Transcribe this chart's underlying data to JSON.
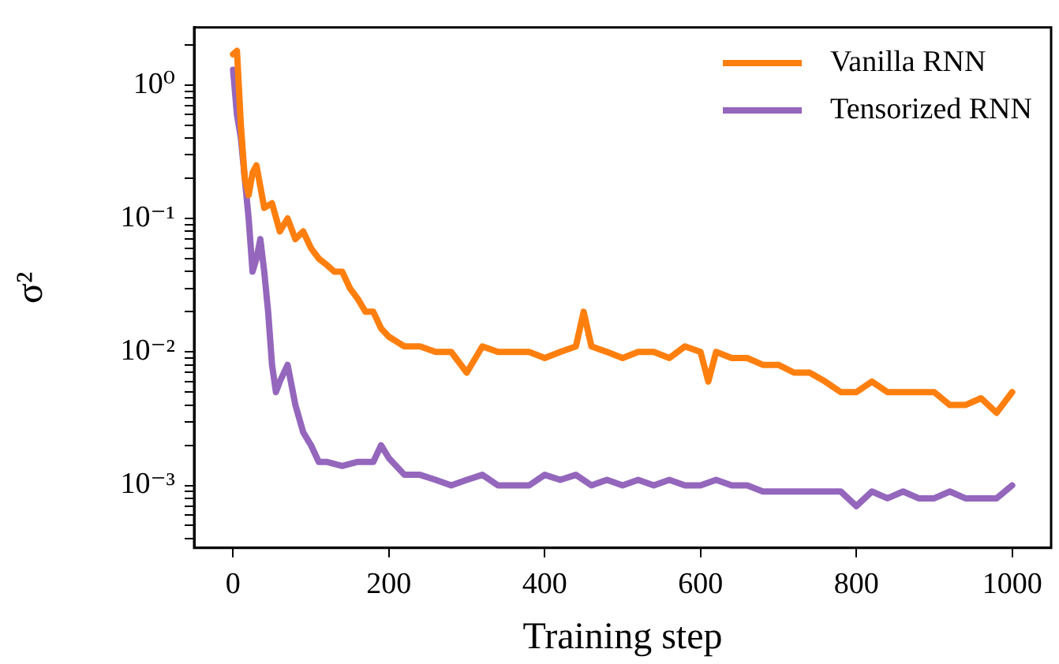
{
  "chart_data": {
    "type": "line",
    "xlabel": "Training step",
    "ylabel": "σ²",
    "log": "y",
    "grid": false,
    "legend": "top right",
    "marker": "none",
    "line_style": "solid",
    "xlim": [
      -50,
      1050
    ],
    "xticks": [
      0,
      200,
      400,
      600,
      800,
      1000
    ],
    "ylim": [
      0.00034,
      2.7
    ],
    "yticks": [
      {
        "value": 0.0004,
        "label": null
      },
      {
        "value": 0.0005,
        "label": null
      },
      {
        "value": 0.0006,
        "label": null
      },
      {
        "value": 0.0007,
        "label": null
      },
      {
        "value": 0.0008,
        "label": null
      },
      {
        "value": 0.0009,
        "label": null
      },
      {
        "value": 0.001,
        "label": "10⁻³"
      },
      {
        "value": 0.002,
        "label": null
      },
      {
        "value": 0.003,
        "label": null
      },
      {
        "value": 0.004,
        "label": null
      },
      {
        "value": 0.005,
        "label": null
      },
      {
        "value": 0.006,
        "label": null
      },
      {
        "value": 0.007,
        "label": null
      },
      {
        "value": 0.008,
        "label": null
      },
      {
        "value": 0.009,
        "label": null
      },
      {
        "value": 0.01,
        "label": "10⁻²"
      },
      {
        "value": 0.02,
        "label": null
      },
      {
        "value": 0.03,
        "label": null
      },
      {
        "value": 0.04,
        "label": null
      },
      {
        "value": 0.05,
        "label": null
      },
      {
        "value": 0.06,
        "label": null
      },
      {
        "value": 0.07,
        "label": null
      },
      {
        "value": 0.08,
        "label": null
      },
      {
        "value": 0.09,
        "label": null
      },
      {
        "value": 0.1,
        "label": "10⁻¹"
      },
      {
        "value": 0.2,
        "label": null
      },
      {
        "value": 0.3,
        "label": null
      },
      {
        "value": 0.4,
        "label": null
      },
      {
        "value": 0.5,
        "label": null
      },
      {
        "value": 0.6,
        "label": null
      },
      {
        "value": 0.7,
        "label": null
      },
      {
        "value": 0.8,
        "label": null
      },
      {
        "value": 0.9,
        "label": null
      },
      {
        "value": 1,
        "label": "10⁰"
      },
      {
        "value": 2,
        "label": null
      }
    ],
    "series": [
      {
        "name": "Vanilla RNN",
        "color": "#ff7f0e",
        "x": [
          0,
          5,
          10,
          15,
          20,
          25,
          30,
          40,
          50,
          60,
          70,
          80,
          90,
          100,
          110,
          120,
          130,
          140,
          150,
          160,
          170,
          180,
          190,
          200,
          220,
          240,
          260,
          280,
          300,
          320,
          340,
          360,
          380,
          400,
          420,
          440,
          450,
          460,
          480,
          500,
          520,
          540,
          560,
          580,
          600,
          610,
          620,
          640,
          660,
          680,
          700,
          720,
          740,
          760,
          780,
          800,
          820,
          840,
          860,
          880,
          900,
          920,
          940,
          960,
          980,
          1000
        ],
        "values": [
          1.7,
          1.8,
          0.5,
          0.2,
          0.15,
          0.22,
          0.25,
          0.12,
          0.13,
          0.08,
          0.1,
          0.07,
          0.08,
          0.06,
          0.05,
          0.045,
          0.04,
          0.04,
          0.03,
          0.025,
          0.02,
          0.02,
          0.015,
          0.013,
          0.011,
          0.011,
          0.01,
          0.01,
          0.007,
          0.011,
          0.01,
          0.01,
          0.01,
          0.009,
          0.01,
          0.011,
          0.02,
          0.011,
          0.01,
          0.009,
          0.01,
          0.01,
          0.009,
          0.011,
          0.01,
          0.006,
          0.01,
          0.009,
          0.009,
          0.008,
          0.008,
          0.007,
          0.007,
          0.006,
          0.005,
          0.005,
          0.006,
          0.005,
          0.005,
          0.005,
          0.005,
          0.004,
          0.004,
          0.0045,
          0.0035,
          0.005
        ]
      },
      {
        "name": "Tensorized RNN",
        "color": "#9467bd",
        "x": [
          0,
          5,
          10,
          20,
          25,
          30,
          35,
          40,
          45,
          50,
          55,
          60,
          70,
          80,
          90,
          100,
          110,
          120,
          140,
          160,
          180,
          190,
          200,
          220,
          240,
          260,
          280,
          300,
          320,
          340,
          360,
          380,
          400,
          420,
          440,
          460,
          480,
          500,
          520,
          540,
          560,
          580,
          600,
          620,
          640,
          660,
          680,
          700,
          720,
          740,
          760,
          780,
          800,
          820,
          840,
          860,
          880,
          900,
          920,
          940,
          960,
          980,
          1000
        ],
        "values": [
          1.3,
          0.6,
          0.4,
          0.1,
          0.04,
          0.05,
          0.07,
          0.04,
          0.02,
          0.008,
          0.005,
          0.006,
          0.008,
          0.004,
          0.0025,
          0.002,
          0.0015,
          0.0015,
          0.0014,
          0.0015,
          0.0015,
          0.002,
          0.0016,
          0.0012,
          0.0012,
          0.0011,
          0.001,
          0.0011,
          0.0012,
          0.001,
          0.001,
          0.001,
          0.0012,
          0.0011,
          0.0012,
          0.001,
          0.0011,
          0.001,
          0.0011,
          0.001,
          0.0011,
          0.001,
          0.001,
          0.0011,
          0.001,
          0.001,
          0.0009,
          0.0009,
          0.0009,
          0.0009,
          0.0009,
          0.0009,
          0.0007,
          0.0009,
          0.0008,
          0.0009,
          0.0008,
          0.0008,
          0.0009,
          0.0008,
          0.0008,
          0.0008,
          0.001
        ]
      }
    ]
  }
}
